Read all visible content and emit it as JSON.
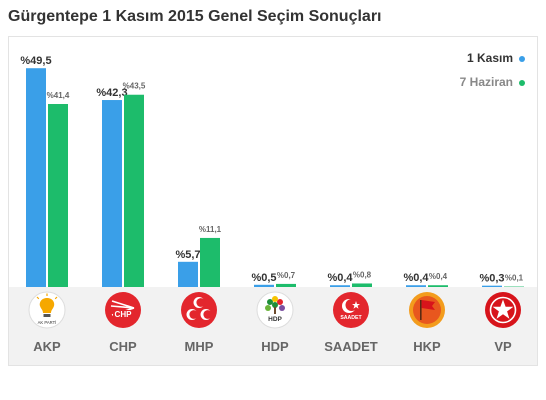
{
  "title": "Gürgentepe 1 Kasım 2015 Genel Seçim Sonuçları",
  "legend": {
    "primary": "1 Kasım",
    "secondary": "7 Haziran"
  },
  "colors": {
    "primary": "#3a9fe8",
    "secondary": "#1dbc6b",
    "akp": "#f6a800",
    "red": "#e3262d",
    "hdp_green": "#1f8f3a",
    "hkp": "#e8571e"
  },
  "chart_data": {
    "type": "bar",
    "categories": [
      "AKP",
      "CHP",
      "MHP",
      "HDP",
      "SAADET",
      "HKP",
      "VP"
    ],
    "series": [
      {
        "name": "1 Kasım",
        "values": [
          49.5,
          42.3,
          5.7,
          0.5,
          0.4,
          0.4,
          0.3
        ],
        "labels": [
          "%49,5",
          "%42,3",
          "%5,7",
          "%0,5",
          "%0,4",
          "%0,4",
          "%0,3"
        ]
      },
      {
        "name": "7 Haziran",
        "values": [
          41.4,
          43.5,
          11.1,
          0.7,
          0.8,
          0.4,
          0.1
        ],
        "labels": [
          "%41,4",
          "%43,5",
          "%11,1",
          "%0,7",
          "%0,8",
          "%0,4",
          "%0,1"
        ]
      }
    ],
    "ylim": [
      0,
      50
    ]
  },
  "parties": [
    {
      "name": "AKP",
      "logo_text": "AK PARTİ",
      "icon": "akp-bulb-icon"
    },
    {
      "name": "CHP",
      "logo_text": "CHP",
      "icon": "chp-six-arrows-icon"
    },
    {
      "name": "MHP",
      "logo_text": "",
      "icon": "mhp-three-crescents-icon"
    },
    {
      "name": "HDP",
      "logo_text": "HDP",
      "icon": "hdp-tree-icon"
    },
    {
      "name": "SAADET",
      "logo_text": "SAADET",
      "icon": "saadet-crescent-star-icon"
    },
    {
      "name": "HKP",
      "logo_text": "",
      "icon": "hkp-flag-icon"
    },
    {
      "name": "VP",
      "logo_text": "",
      "icon": "vp-star-icon"
    }
  ]
}
